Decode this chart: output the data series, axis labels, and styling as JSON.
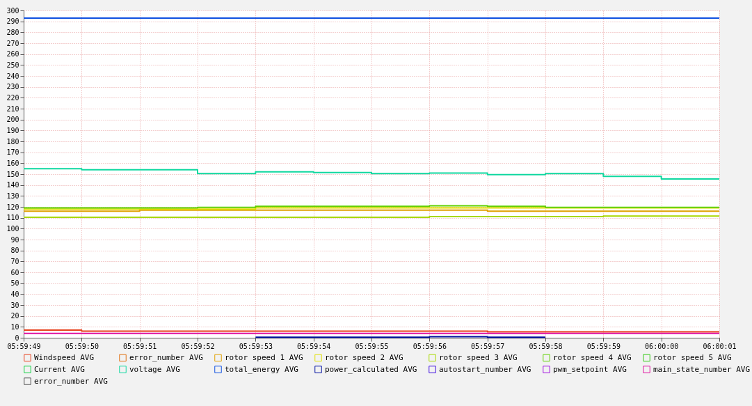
{
  "chart_data": {
    "type": "step",
    "categories": [
      "05:59:49",
      "05:59:50",
      "05:59:51",
      "05:59:52",
      "05:59:53",
      "05:59:54",
      "05:59:55",
      "05:59:56",
      "05:59:57",
      "05:59:58",
      "05:59:59",
      "06:00:00",
      "06:00:01"
    ],
    "ylim": [
      0,
      300
    ],
    "yticks": [
      0,
      10,
      20,
      30,
      40,
      50,
      60,
      70,
      80,
      90,
      100,
      110,
      120,
      130,
      140,
      150,
      160,
      170,
      180,
      190,
      200,
      210,
      220,
      230,
      240,
      250,
      260,
      270,
      280,
      290,
      300
    ],
    "grid": true,
    "legend": "bottom",
    "series": [
      {
        "name": "Windspeed AVG",
        "color": "#e8401c",
        "values": [
          7,
          6,
          6,
          6,
          6,
          6,
          6,
          6,
          5.5,
          5.5,
          5.5,
          5.5,
          5.5
        ]
      },
      {
        "name": "error_number AVG",
        "color": "#e07010",
        "values": [
          null,
          null,
          null,
          null,
          null,
          null,
          null,
          null,
          null,
          null,
          null,
          null,
          null
        ]
      },
      {
        "name": "rotor speed 1 AVG",
        "color": "#e0a000",
        "values": [
          116,
          116,
          117,
          117,
          117,
          117,
          117,
          117,
          116,
          116,
          116,
          116,
          116
        ]
      },
      {
        "name": "rotor speed 2 AVG",
        "color": "#e0e000",
        "values": [
          118,
          118,
          118,
          118,
          119,
          119,
          119,
          119,
          119,
          119,
          119,
          119,
          119
        ]
      },
      {
        "name": "rotor speed 3 AVG",
        "color": "#a8d800",
        "values": [
          110.5,
          110.5,
          110.5,
          110.5,
          110.5,
          110.5,
          110.5,
          111,
          111,
          111,
          111.5,
          111.5,
          111.5
        ]
      },
      {
        "name": "rotor speed 4 AVG",
        "color": "#60d000",
        "values": [
          119,
          119,
          119,
          119.5,
          120.5,
          120.5,
          120.5,
          121,
          120.5,
          119.5,
          119.5,
          119.5,
          119.5
        ]
      },
      {
        "name": "rotor speed 5 AVG",
        "color": "#30c810",
        "values": [
          null,
          null,
          null,
          null,
          null,
          null,
          null,
          null,
          null,
          null,
          null,
          null,
          null
        ]
      },
      {
        "name": "Current AVG",
        "color": "#10d040",
        "values": [
          null,
          null,
          null,
          null,
          null,
          null,
          null,
          null,
          null,
          null,
          null,
          null,
          null
        ]
      },
      {
        "name": "voltage AVG",
        "color": "#10d8a0",
        "values": [
          155,
          154,
          154,
          150.5,
          152,
          151.5,
          150.5,
          151,
          149.5,
          150.5,
          148,
          145.5,
          145.5
        ]
      },
      {
        "name": "total_energy AVG",
        "color": "#1050e0",
        "values": [
          293,
          293,
          293,
          293,
          293,
          293,
          293,
          293,
          293,
          293,
          293,
          293,
          293
        ]
      },
      {
        "name": "power_calculated AVG",
        "color": "#0010a0",
        "values": [
          null,
          null,
          null,
          null,
          0.5,
          0.5,
          0.5,
          1,
          0.5,
          0.5,
          null,
          null,
          null
        ]
      },
      {
        "name": "autostart_number AVG",
        "color": "#4010e0",
        "values": [
          null,
          null,
          null,
          null,
          null,
          null,
          null,
          null,
          null,
          null,
          null,
          null,
          null
        ]
      },
      {
        "name": "pwm_setpoint AVG",
        "color": "#a010e0",
        "values": [
          null,
          null,
          null,
          null,
          null,
          null,
          null,
          null,
          null,
          null,
          null,
          null,
          null
        ]
      },
      {
        "name": "main_state_number AVG",
        "color": "#e010a0",
        "values": [
          4,
          4,
          4,
          4,
          4,
          4,
          4,
          4,
          4,
          4,
          4,
          4,
          4
        ]
      },
      {
        "name": "error_number AVG",
        "color": "#505050",
        "values": [
          null,
          null,
          null,
          null,
          null,
          null,
          null,
          null,
          null,
          null,
          null,
          null,
          null
        ]
      }
    ]
  }
}
